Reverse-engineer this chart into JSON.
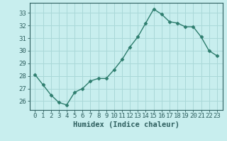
{
  "x": [
    0,
    1,
    2,
    3,
    4,
    5,
    6,
    7,
    8,
    9,
    10,
    11,
    12,
    13,
    14,
    15,
    16,
    17,
    18,
    19,
    20,
    21,
    22,
    23
  ],
  "y": [
    28.1,
    27.3,
    26.5,
    25.9,
    25.7,
    26.7,
    27.0,
    27.6,
    27.8,
    27.8,
    28.5,
    29.3,
    30.3,
    31.1,
    32.2,
    33.3,
    32.9,
    32.3,
    32.2,
    31.9,
    31.9,
    31.1,
    30.0,
    29.6
  ],
  "line_color": "#2e7d6e",
  "marker": "D",
  "marker_size": 2.5,
  "bg_color": "#c8eeee",
  "grid_color": "#aad8d8",
  "tick_color": "#2e5f5f",
  "xlabel": "Humidex (Indice chaleur)",
  "ylim": [
    25.3,
    33.8
  ],
  "yticks": [
    26,
    27,
    28,
    29,
    30,
    31,
    32,
    33
  ],
  "xticks": [
    0,
    1,
    2,
    3,
    4,
    5,
    6,
    7,
    8,
    9,
    10,
    11,
    12,
    13,
    14,
    15,
    16,
    17,
    18,
    19,
    20,
    21,
    22,
    23
  ],
  "xlabel_fontsize": 7.5,
  "tick_fontsize": 6.5,
  "line_width": 1.0
}
